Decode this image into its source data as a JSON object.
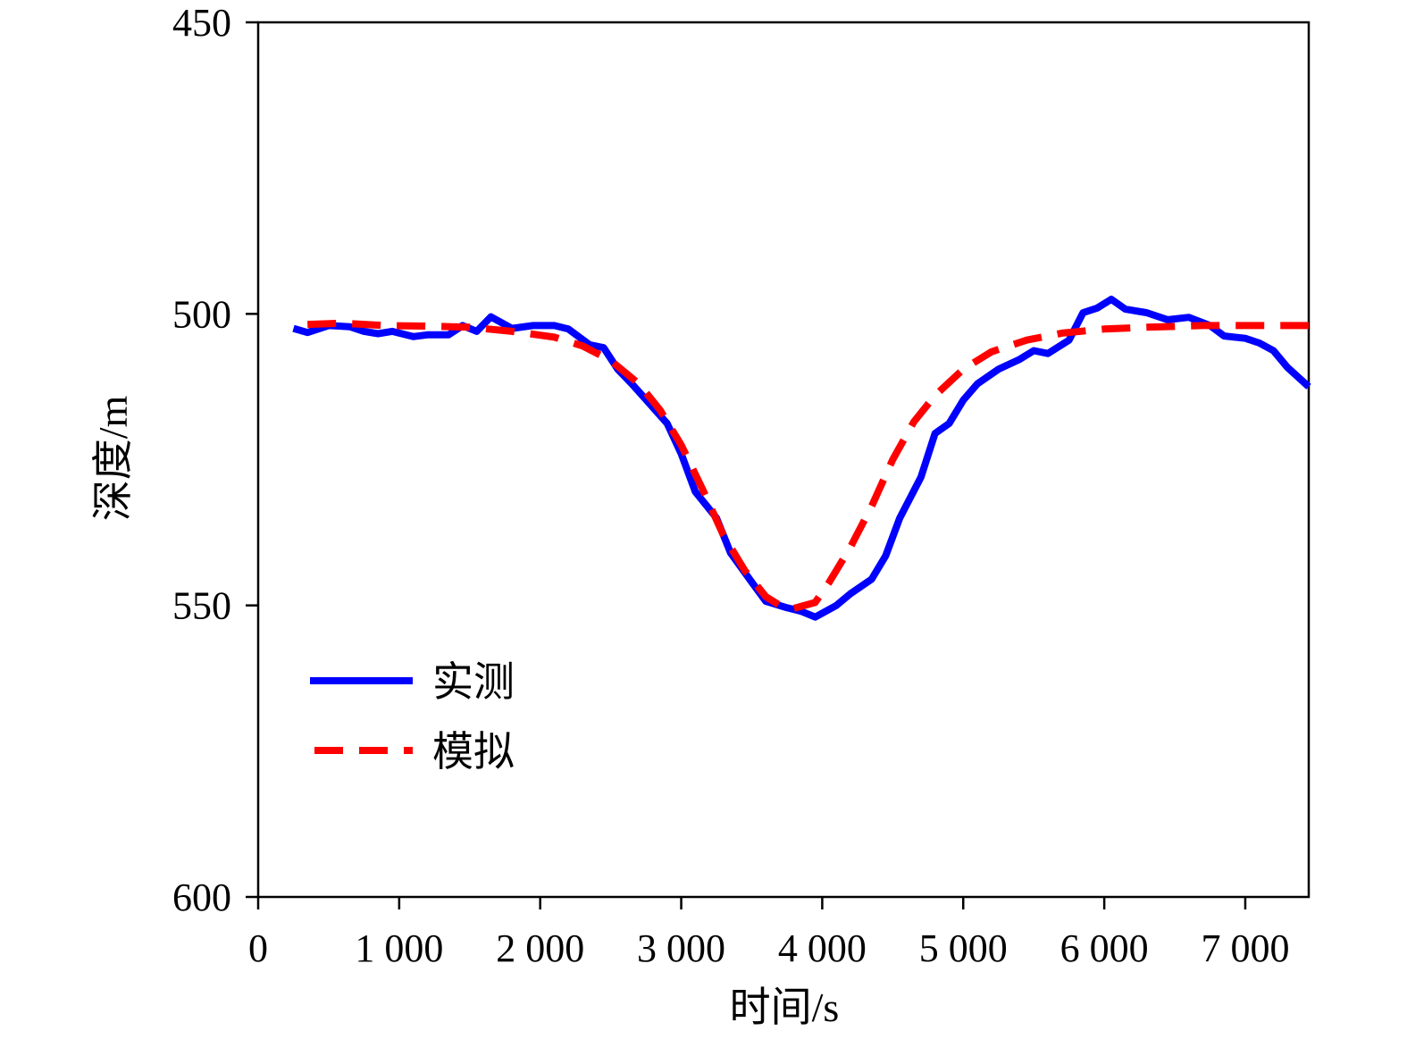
{
  "chart_data": {
    "type": "line",
    "title": "",
    "xlabel": "时间/s",
    "ylabel": "深度/m",
    "xlim": [
      0,
      7450
    ],
    "ylim": [
      450,
      600
    ],
    "y_inverted": true,
    "xticks": [
      0,
      1000,
      2000,
      3000,
      4000,
      5000,
      6000,
      7000
    ],
    "xtick_labels": [
      "0",
      "1 000",
      "2 000",
      "3 000",
      "4 000",
      "5 000",
      "6 000",
      "7 000"
    ],
    "yticks": [
      450,
      500,
      550,
      600
    ],
    "ytick_labels": [
      "450",
      "500",
      "550",
      "600"
    ],
    "grid": false,
    "legend": {
      "position": "lower-left"
    },
    "series": [
      {
        "name": "实测",
        "color": "#0000ff",
        "style": "solid",
        "points": [
          [
            250,
            502.5
          ],
          [
            350,
            503.2
          ],
          [
            500,
            502.0
          ],
          [
            650,
            502.2
          ],
          [
            750,
            503.0
          ],
          [
            850,
            503.4
          ],
          [
            950,
            503.0
          ],
          [
            1100,
            503.9
          ],
          [
            1200,
            503.6
          ],
          [
            1350,
            503.6
          ],
          [
            1450,
            502.0
          ],
          [
            1550,
            503.0
          ],
          [
            1650,
            500.5
          ],
          [
            1800,
            502.5
          ],
          [
            1950,
            502.0
          ],
          [
            2100,
            502.0
          ],
          [
            2200,
            502.6
          ],
          [
            2350,
            505.3
          ],
          [
            2450,
            505.8
          ],
          [
            2550,
            509.5
          ],
          [
            2650,
            512.0
          ],
          [
            2750,
            514.7
          ],
          [
            2900,
            518.8
          ],
          [
            3000,
            524.0
          ],
          [
            3100,
            530.5
          ],
          [
            3250,
            535.0
          ],
          [
            3350,
            541.0
          ],
          [
            3500,
            546.0
          ],
          [
            3600,
            549.3
          ],
          [
            3750,
            550.4
          ],
          [
            3850,
            551.0
          ],
          [
            3950,
            552.0
          ],
          [
            4100,
            550.0
          ],
          [
            4200,
            548.0
          ],
          [
            4350,
            545.5
          ],
          [
            4450,
            541.5
          ],
          [
            4550,
            535.0
          ],
          [
            4700,
            528.0
          ],
          [
            4800,
            520.5
          ],
          [
            4900,
            518.8
          ],
          [
            5000,
            514.8
          ],
          [
            5100,
            512.0
          ],
          [
            5250,
            509.5
          ],
          [
            5400,
            507.8
          ],
          [
            5500,
            506.3
          ],
          [
            5600,
            506.8
          ],
          [
            5750,
            504.5
          ],
          [
            5850,
            499.8
          ],
          [
            5950,
            499.0
          ],
          [
            6050,
            497.5
          ],
          [
            6150,
            499.2
          ],
          [
            6300,
            499.8
          ],
          [
            6450,
            501.0
          ],
          [
            6600,
            500.6
          ],
          [
            6750,
            502.0
          ],
          [
            6850,
            503.8
          ],
          [
            7000,
            504.2
          ],
          [
            7100,
            505.0
          ],
          [
            7200,
            506.3
          ],
          [
            7300,
            509.2
          ],
          [
            7450,
            512.5
          ]
        ]
      },
      {
        "name": "模拟",
        "color": "#ff0000",
        "style": "dashed",
        "points": [
          [
            350,
            501.8
          ],
          [
            600,
            501.6
          ],
          [
            900,
            502.0
          ],
          [
            1200,
            502.1
          ],
          [
            1500,
            502.3
          ],
          [
            1800,
            503.0
          ],
          [
            2100,
            504.0
          ],
          [
            2300,
            505.5
          ],
          [
            2500,
            508.0
          ],
          [
            2700,
            512.0
          ],
          [
            2850,
            516.5
          ],
          [
            3000,
            522.5
          ],
          [
            3150,
            530.0
          ],
          [
            3300,
            538.0
          ],
          [
            3450,
            544.0
          ],
          [
            3600,
            548.5
          ],
          [
            3700,
            550.0
          ],
          [
            3800,
            550.5
          ],
          [
            3950,
            549.5
          ],
          [
            4050,
            546.0
          ],
          [
            4200,
            540.0
          ],
          [
            4350,
            533.0
          ],
          [
            4500,
            525.0
          ],
          [
            4650,
            518.5
          ],
          [
            4800,
            514.0
          ],
          [
            5000,
            509.5
          ],
          [
            5200,
            506.5
          ],
          [
            5450,
            504.5
          ],
          [
            5700,
            503.3
          ],
          [
            6000,
            502.6
          ],
          [
            6300,
            502.3
          ],
          [
            6700,
            502.0
          ],
          [
            7100,
            502.0
          ],
          [
            7450,
            502.0
          ]
        ]
      }
    ]
  }
}
